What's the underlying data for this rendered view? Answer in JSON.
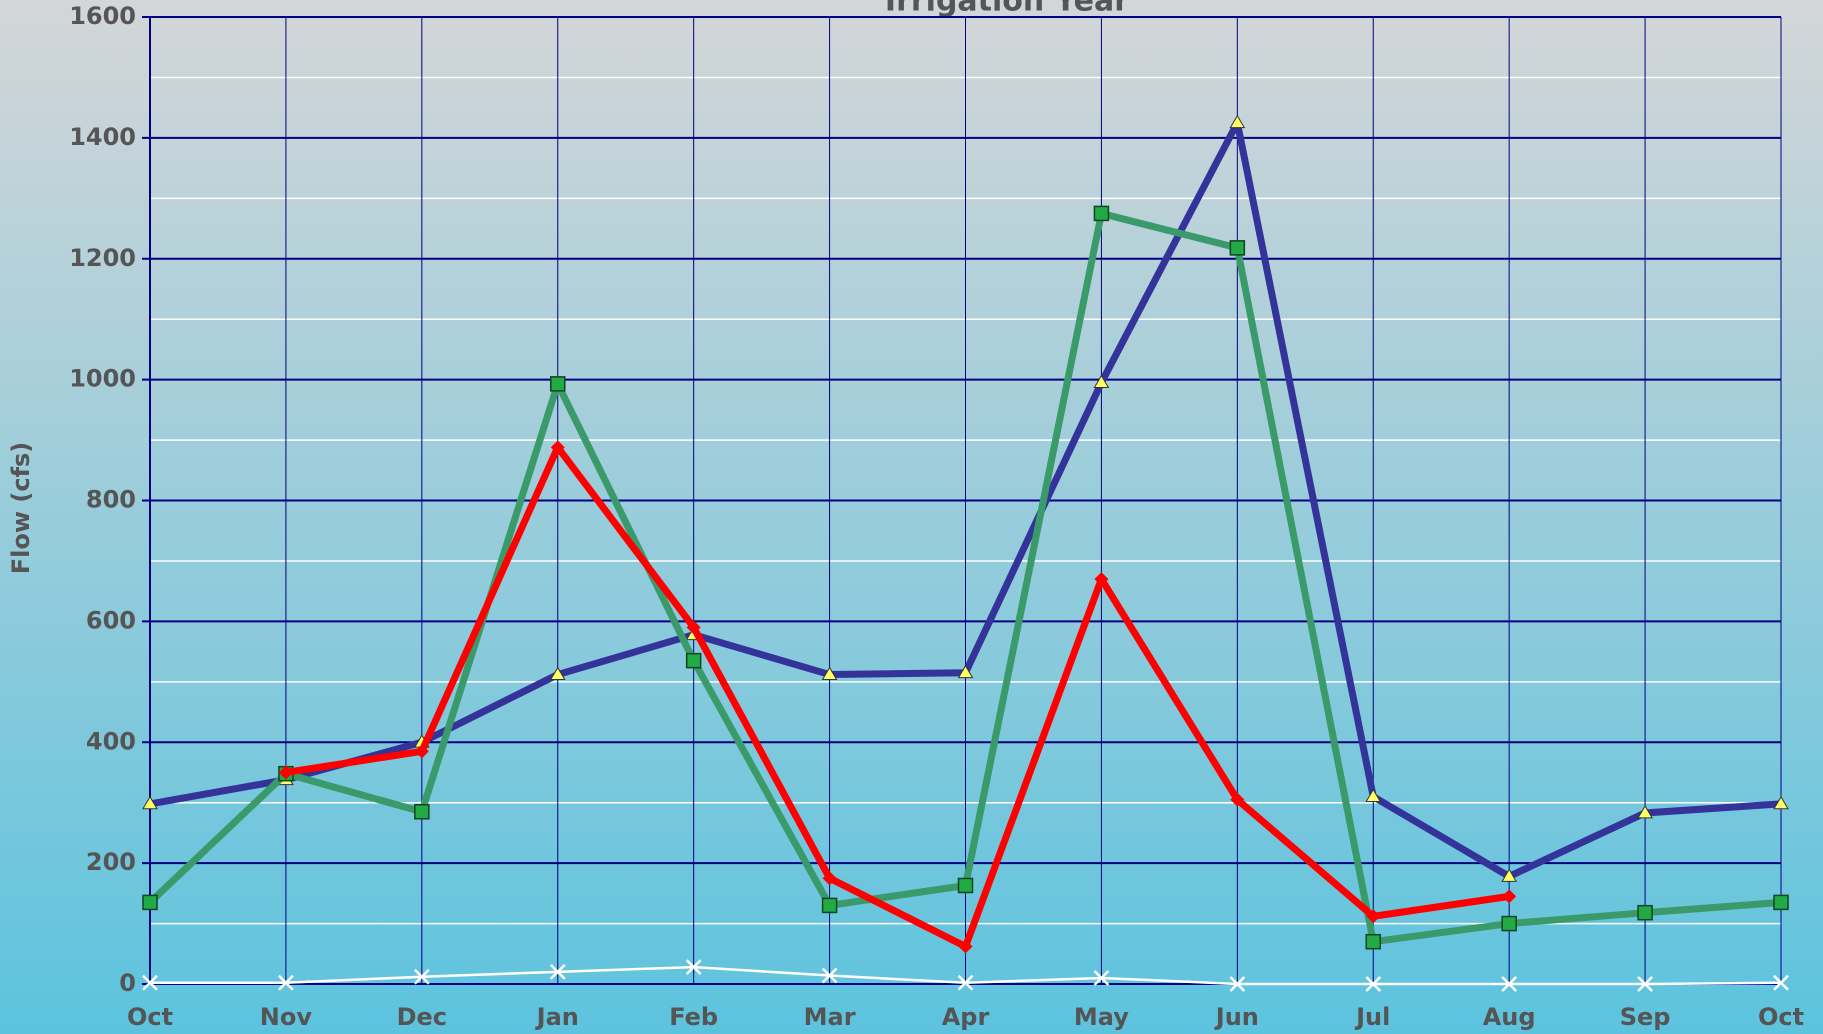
{
  "chart_data": {
    "type": "line",
    "title": "Irrigation Year",
    "y_label": "Flow (cfs)",
    "categories": [
      "Oct",
      "Nov",
      "Dec",
      "Jan",
      "Feb",
      "Mar",
      "Apr",
      "May",
      "Jun",
      "Jul",
      "Aug",
      "Sep",
      "Oct"
    ],
    "series": [
      {
        "color": "#33339a",
        "marker": "triangle",
        "values": [
          298,
          338,
          400,
          512,
          578,
          512,
          515,
          995,
          1425,
          310,
          178,
          283,
          298
        ]
      },
      {
        "color": "#3a9a6a",
        "marker": "square",
        "values": [
          135,
          348,
          285,
          993,
          535,
          130,
          163,
          1275,
          1218,
          70,
          100,
          118,
          135
        ]
      },
      {
        "color": "#ff0000",
        "marker": "diamond",
        "values": [
          null,
          350,
          385,
          888,
          590,
          175,
          62,
          670,
          305,
          112,
          145,
          null,
          null
        ]
      },
      {
        "color": "#ffffff",
        "marker": "x",
        "values": [
          2,
          2,
          12,
          20,
          28,
          14,
          2,
          10,
          0,
          0,
          0,
          0,
          2
        ]
      }
    ],
    "ylim": [
      0,
      1600
    ],
    "yticks": [
      0,
      200,
      400,
      600,
      800,
      1000,
      1200,
      1400,
      1600
    ],
    "minor_yticks": [
      100,
      300,
      500,
      700,
      900,
      1100,
      1300,
      1500
    ],
    "grid": true
  }
}
